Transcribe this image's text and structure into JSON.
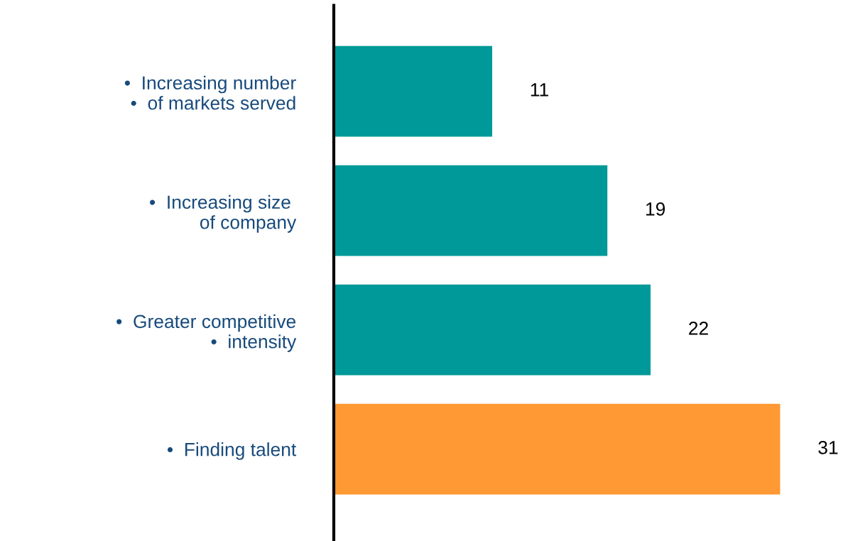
{
  "chart_data": {
    "type": "bar",
    "orientation": "horizontal",
    "categories": [
      "•  Increasing number\n•  of markets served",
      "•  Increasing size \nof company",
      "•  Greater competitive\n•  intensity",
      "•  Finding talent"
    ],
    "values": [
      11,
      19,
      22,
      31
    ],
    "colors": [
      "#009999",
      "#009999",
      "#009999",
      "#ff9933"
    ],
    "data_labels": true,
    "tick_labels": "y"
  }
}
